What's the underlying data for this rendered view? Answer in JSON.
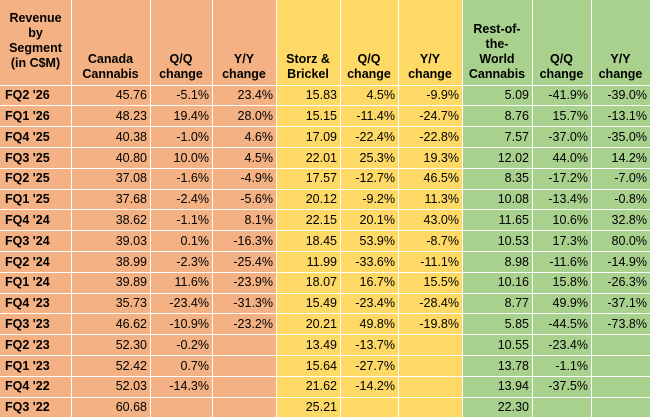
{
  "headers": [
    "Revenue by Segment (in C$M)",
    "Canada Cannabis",
    "Q/Q change",
    "Y/Y change",
    "Storz & Brickel",
    "Q/Q change",
    "Y/Y change",
    "Rest-of-the-World Cannabis",
    "Q/Q change",
    "Y/Y change"
  ],
  "header_lines": [
    [
      "Revenue",
      "by",
      "Segment",
      "(in C$M)"
    ],
    [
      "Canada",
      "Cannabis"
    ],
    [
      "Q/Q",
      "change"
    ],
    [
      "Y/Y",
      "change"
    ],
    [
      "Storz &",
      "Brickel"
    ],
    [
      "Q/Q",
      "change"
    ],
    [
      "Y/Y",
      "change"
    ],
    [
      "Rest-of-",
      "the-",
      "World",
      "Cannabis"
    ],
    [
      "Q/Q",
      "change"
    ],
    [
      "Y/Y",
      "change"
    ]
  ],
  "colors": {
    "label": "#f4b183",
    "canada": "#f4b183",
    "storz": "#ffd966",
    "row": "#a9d18e"
  },
  "rows": [
    [
      "FQ2 '26",
      "45.76",
      "-5.1%",
      "23.4%",
      "15.83",
      "4.5%",
      "-9.9%",
      "5.09",
      "-41.9%",
      "-39.0%"
    ],
    [
      "FQ1 '26",
      "48.23",
      "19.4%",
      "28.0%",
      "15.15",
      "-11.4%",
      "-24.7%",
      "8.76",
      "15.7%",
      "-13.1%"
    ],
    [
      "FQ4 '25",
      "40.38",
      "-1.0%",
      "4.6%",
      "17.09",
      "-22.4%",
      "-22.8%",
      "7.57",
      "-37.0%",
      "-35.0%"
    ],
    [
      "FQ3 '25",
      "40.80",
      "10.0%",
      "4.5%",
      "22.01",
      "25.3%",
      "19.3%",
      "12.02",
      "44.0%",
      "14.2%"
    ],
    [
      "FQ2 '25",
      "37.08",
      "-1.6%",
      "-4.9%",
      "17.57",
      "-12.7%",
      "46.5%",
      "8.35",
      "-17.2%",
      "-7.0%"
    ],
    [
      "FQ1 '25",
      "37.68",
      "-2.4%",
      "-5.6%",
      "20.12",
      "-9.2%",
      "11.3%",
      "10.08",
      "-13.4%",
      "-0.8%"
    ],
    [
      "FQ4 '24",
      "38.62",
      "-1.1%",
      "8.1%",
      "22.15",
      "20.1%",
      "43.0%",
      "11.65",
      "10.6%",
      "32.8%"
    ],
    [
      "FQ3 '24",
      "39.03",
      "0.1%",
      "-16.3%",
      "18.45",
      "53.9%",
      "-8.7%",
      "10.53",
      "17.3%",
      "80.0%"
    ],
    [
      "FQ2 '24",
      "38.99",
      "-2.3%",
      "-25.4%",
      "11.99",
      "-33.6%",
      "-11.1%",
      "8.98",
      "-11.6%",
      "-14.9%"
    ],
    [
      "FQ1 '24",
      "39.89",
      "11.6%",
      "-23.9%",
      "18.07",
      "16.7%",
      "15.5%",
      "10.16",
      "15.8%",
      "-26.3%"
    ],
    [
      "FQ4 '23",
      "35.73",
      "-23.4%",
      "-31.3%",
      "15.49",
      "-23.4%",
      "-28.4%",
      "8.77",
      "49.9%",
      "-37.1%"
    ],
    [
      "FQ3 '23",
      "46.62",
      "-10.9%",
      "-23.2%",
      "20.21",
      "49.8%",
      "-19.8%",
      "5.85",
      "-44.5%",
      "-73.8%"
    ],
    [
      "FQ2 '23",
      "52.30",
      "-0.2%",
      "",
      "13.49",
      "-13.7%",
      "",
      "10.55",
      "-23.4%",
      ""
    ],
    [
      "FQ1 '23",
      "52.42",
      "0.7%",
      "",
      "15.64",
      "-27.7%",
      "",
      "13.78",
      "-1.1%",
      ""
    ],
    [
      "FQ4 '22",
      "52.03",
      "-14.3%",
      "",
      "21.62",
      "-14.2%",
      "",
      "13.94",
      "-37.5%",
      ""
    ],
    [
      "FQ3 '22",
      "60.68",
      "",
      "",
      "25.21",
      "",
      "",
      "22.30",
      "",
      ""
    ]
  ]
}
